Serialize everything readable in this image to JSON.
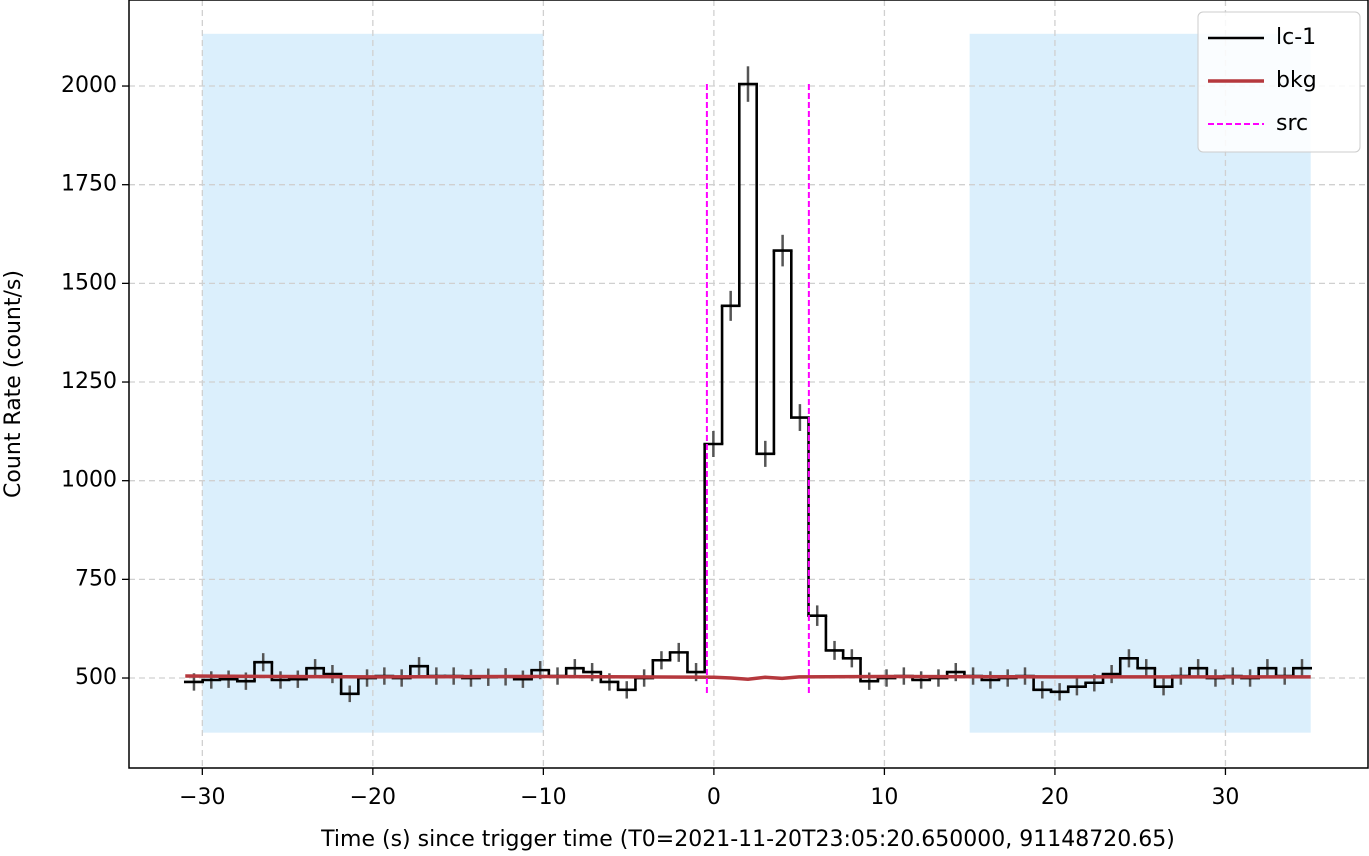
{
  "chart_data": {
    "type": "step",
    "xlabel": "Time (s) since trigger time (T0=2021-11-20T23:05:20.650000, 91148720.65)",
    "ylabel": "Count Rate (count/s)",
    "xlim": [
      -34.3,
      38.36
    ],
    "ylim": [
      272,
      2218
    ],
    "xticks": [
      {
        "value": -30,
        "label": "−30"
      },
      {
        "value": -20,
        "label": "−20"
      },
      {
        "value": -10,
        "label": "−10"
      },
      0,
      10,
      20,
      30
    ],
    "yticks": [
      500,
      750,
      1000,
      1250,
      1500,
      1750,
      2000
    ],
    "grid": true,
    "legend": "upper right",
    "bkg_intervals": [
      [
        -30,
        -10
      ],
      [
        15,
        35
      ]
    ],
    "bkg_interval_color": "#dbeffc",
    "series": [
      {
        "name": "lc-1",
        "color": "#000000",
        "bins": [
          -31,
          -29.98,
          -28.97,
          -27.95,
          -26.94,
          -25.92,
          -24.91,
          -23.89,
          -22.88,
          -21.86,
          -20.85,
          -19.83,
          -18.82,
          -17.8,
          -16.78,
          -15.77,
          -14.75,
          -13.74,
          -12.72,
          -11.71,
          -10.69,
          -9.68,
          -8.66,
          -7.65,
          -6.63,
          -5.62,
          -4.6,
          -3.58,
          -2.57,
          -1.55,
          -0.54,
          0.48,
          1.49,
          2.51,
          3.52,
          4.54,
          5.55,
          6.57,
          7.58,
          8.6,
          9.62,
          10.63,
          11.65,
          12.66,
          13.68,
          14.69,
          15.71,
          16.72,
          17.74,
          18.75,
          19.77,
          20.78,
          21.8,
          22.82,
          23.83,
          24.85,
          25.86,
          26.88,
          27.89,
          28.91,
          29.92,
          30.94,
          31.95,
          32.97,
          33.98,
          35
        ],
        "values": [
          490,
          495,
          497,
          492,
          540,
          495,
          497,
          525,
          510,
          460,
          500,
          505,
          500,
          530,
          505,
          505,
          500,
          502,
          503,
          497,
          520,
          505,
          525,
          515,
          490,
          470,
          500,
          545,
          565,
          515,
          1093,
          1443,
          2005,
          1068,
          1583,
          1160,
          658,
          570,
          550,
          492,
          500,
          505,
          495,
          500,
          515,
          505,
          495,
          500,
          505,
          470,
          465,
          478,
          488,
          510,
          550,
          525,
          478,
          505,
          525,
          500,
          505,
          500,
          525,
          505,
          525
        ],
        "errors": [
          22,
          22,
          22,
          22,
          23,
          22,
          22,
          23,
          23,
          21,
          22,
          22,
          22,
          23,
          22,
          22,
          22,
          22,
          22,
          22,
          23,
          22,
          23,
          23,
          22,
          22,
          22,
          23,
          24,
          23,
          33,
          38,
          45,
          33,
          40,
          34,
          26,
          24,
          23,
          22,
          22,
          22,
          22,
          22,
          23,
          22,
          22,
          22,
          22,
          22,
          22,
          22,
          22,
          23,
          23,
          23,
          22,
          22,
          23,
          22,
          22,
          22,
          23,
          22,
          23
        ]
      },
      {
        "name": "bkg",
        "color": "#b5383d",
        "x": [
          -31,
          -20,
          -10,
          0,
          1,
          2,
          3,
          4,
          5,
          10,
          20,
          35
        ],
        "values": [
          505,
          503,
          504,
          502,
          500,
          497,
          502,
          499,
          503,
          504,
          503,
          503
        ]
      },
      {
        "name": "src",
        "color": "#ff00ff",
        "x": [
          -0.41,
          5.57
        ]
      }
    ]
  }
}
